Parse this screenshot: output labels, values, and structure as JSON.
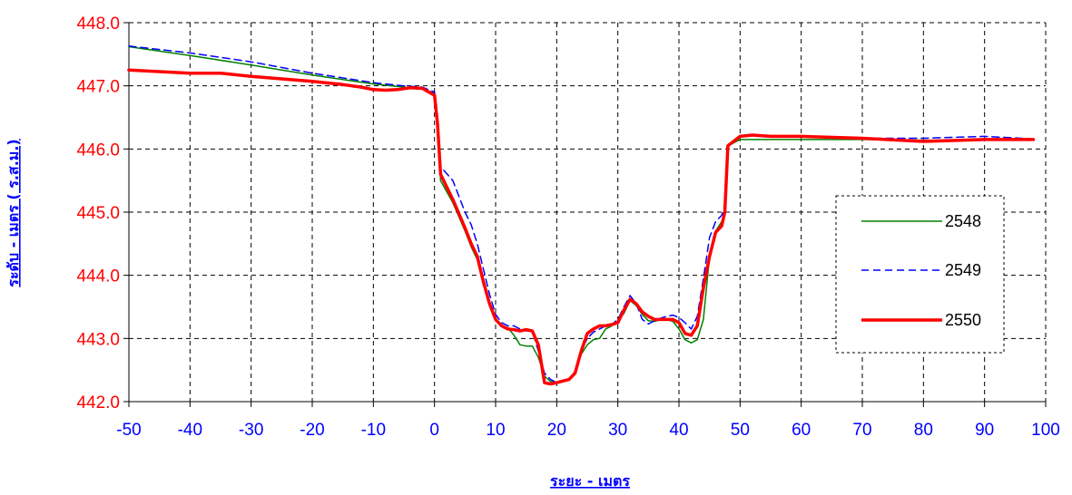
{
  "colors": {
    "y_tick": "#ff0000",
    "x_tick": "#0000ff",
    "axis_title": "#0000ff",
    "grid": "#000000"
  },
  "chart_data": {
    "type": "line",
    "title": "",
    "xlabel": "ระยะ - เมตร",
    "ylabel": "ระดับ - เมตร ( ร.ส.ม.)",
    "xlim": [
      -50,
      100
    ],
    "ylim": [
      442.0,
      448.0
    ],
    "x_ticks": [
      -50,
      -40,
      -30,
      -20,
      -10,
      0,
      10,
      20,
      30,
      40,
      50,
      60,
      70,
      80,
      90,
      100
    ],
    "y_ticks": [
      "442.0",
      "443.0",
      "444.0",
      "445.0",
      "446.0",
      "447.0",
      "448.0"
    ],
    "grid": true,
    "legend_position": "right",
    "series": [
      {
        "name": "2548",
        "color": "#008000",
        "dash": "solid",
        "width": 1.5,
        "points": [
          [
            -50,
            447.62
          ],
          [
            -40,
            447.48
          ],
          [
            -30,
            447.33
          ],
          [
            -20,
            447.17
          ],
          [
            -10,
            447.03
          ],
          [
            -5,
            446.98
          ],
          [
            -2,
            446.96
          ],
          [
            0,
            446.88
          ],
          [
            0.5,
            446.4
          ],
          [
            1,
            445.5
          ],
          [
            3,
            445.15
          ],
          [
            5,
            444.7
          ],
          [
            6,
            444.45
          ],
          [
            7,
            444.25
          ],
          [
            8,
            443.85
          ],
          [
            9,
            443.55
          ],
          [
            10,
            443.32
          ],
          [
            11,
            443.2
          ],
          [
            12,
            443.17
          ],
          [
            13,
            443.05
          ],
          [
            14,
            442.9
          ],
          [
            15,
            442.88
          ],
          [
            16,
            442.88
          ],
          [
            17,
            442.7
          ],
          [
            18,
            442.4
          ],
          [
            19,
            442.32
          ],
          [
            20,
            442.3
          ],
          [
            22,
            442.35
          ],
          [
            23,
            442.45
          ],
          [
            24,
            442.75
          ],
          [
            25,
            442.9
          ],
          [
            26,
            442.98
          ],
          [
            27,
            443.0
          ],
          [
            28,
            443.15
          ],
          [
            29,
            443.2
          ],
          [
            30,
            443.27
          ],
          [
            31,
            443.4
          ],
          [
            32,
            443.6
          ],
          [
            33,
            443.52
          ],
          [
            34,
            443.38
          ],
          [
            35,
            443.28
          ],
          [
            36,
            443.27
          ],
          [
            37,
            443.3
          ],
          [
            38,
            443.3
          ],
          [
            39,
            443.27
          ],
          [
            40,
            443.15
          ],
          [
            41,
            442.98
          ],
          [
            42,
            442.93
          ],
          [
            43,
            442.98
          ],
          [
            44,
            443.3
          ],
          [
            44.5,
            443.8
          ],
          [
            45,
            444.3
          ],
          [
            46,
            444.7
          ],
          [
            47,
            444.85
          ],
          [
            47.5,
            445.0
          ],
          [
            48,
            446.05
          ],
          [
            50,
            446.15
          ],
          [
            55,
            446.15
          ],
          [
            60,
            446.15
          ],
          [
            70,
            446.15
          ],
          [
            80,
            446.14
          ],
          [
            90,
            446.14
          ],
          [
            98,
            446.14
          ]
        ]
      },
      {
        "name": "2549",
        "color": "#0000ff",
        "dash": "dashed",
        "width": 1.5,
        "points": [
          [
            -50,
            447.63
          ],
          [
            -40,
            447.52
          ],
          [
            -30,
            447.38
          ],
          [
            -20,
            447.2
          ],
          [
            -10,
            447.05
          ],
          [
            -5,
            447.0
          ],
          [
            -2,
            446.98
          ],
          [
            0,
            446.9
          ],
          [
            0.5,
            446.4
          ],
          [
            1,
            445.72
          ],
          [
            3,
            445.5
          ],
          [
            5,
            445.0
          ],
          [
            6,
            444.8
          ],
          [
            7,
            444.5
          ],
          [
            8,
            444.1
          ],
          [
            9,
            443.7
          ],
          [
            10,
            443.38
          ],
          [
            11,
            443.25
          ],
          [
            12,
            443.2
          ],
          [
            13,
            443.2
          ],
          [
            14,
            443.15
          ],
          [
            15,
            443.12
          ],
          [
            16,
            443.12
          ],
          [
            17,
            442.8
          ],
          [
            18,
            442.45
          ],
          [
            19,
            442.35
          ],
          [
            20,
            442.3
          ],
          [
            22,
            442.35
          ],
          [
            23,
            442.48
          ],
          [
            24,
            442.8
          ],
          [
            25,
            443.0
          ],
          [
            26,
            443.1
          ],
          [
            27,
            443.15
          ],
          [
            28,
            443.2
          ],
          [
            29,
            443.22
          ],
          [
            30,
            443.3
          ],
          [
            31,
            443.5
          ],
          [
            32,
            443.68
          ],
          [
            33,
            443.55
          ],
          [
            34,
            443.3
          ],
          [
            35,
            443.23
          ],
          [
            36,
            443.28
          ],
          [
            37,
            443.32
          ],
          [
            38,
            443.35
          ],
          [
            39,
            443.37
          ],
          [
            40,
            443.33
          ],
          [
            41,
            443.25
          ],
          [
            42,
            443.15
          ],
          [
            43,
            443.35
          ],
          [
            44,
            443.95
          ],
          [
            45,
            444.6
          ],
          [
            46,
            444.85
          ],
          [
            47,
            444.95
          ],
          [
            47.5,
            445.1
          ],
          [
            48,
            446.05
          ],
          [
            50,
            446.2
          ],
          [
            52,
            446.22
          ],
          [
            55,
            446.2
          ],
          [
            60,
            446.2
          ],
          [
            70,
            446.17
          ],
          [
            80,
            446.17
          ],
          [
            90,
            446.2
          ],
          [
            98,
            446.16
          ]
        ]
      },
      {
        "name": "2550",
        "color": "#ff0000",
        "dash": "solid",
        "width": 3.5,
        "points": [
          [
            -50,
            447.25
          ],
          [
            -40,
            447.2
          ],
          [
            -35,
            447.2
          ],
          [
            -30,
            447.15
          ],
          [
            -20,
            447.07
          ],
          [
            -15,
            447.02
          ],
          [
            -12,
            446.98
          ],
          [
            -10,
            446.94
          ],
          [
            -8,
            446.93
          ],
          [
            -6,
            446.94
          ],
          [
            -4,
            446.97
          ],
          [
            -2,
            446.96
          ],
          [
            0,
            446.85
          ],
          [
            0.5,
            446.4
          ],
          [
            1,
            445.6
          ],
          [
            3,
            445.2
          ],
          [
            5,
            444.75
          ],
          [
            6,
            444.5
          ],
          [
            7,
            444.3
          ],
          [
            8,
            443.9
          ],
          [
            9,
            443.55
          ],
          [
            10,
            443.3
          ],
          [
            11,
            443.2
          ],
          [
            12,
            443.15
          ],
          [
            13,
            443.14
          ],
          [
            14,
            443.12
          ],
          [
            15,
            443.14
          ],
          [
            16,
            443.12
          ],
          [
            17,
            442.9
          ],
          [
            18,
            442.3
          ],
          [
            19,
            442.28
          ],
          [
            20,
            442.3
          ],
          [
            22,
            442.35
          ],
          [
            23,
            442.45
          ],
          [
            24,
            442.8
          ],
          [
            25,
            443.08
          ],
          [
            26,
            443.15
          ],
          [
            27,
            443.2
          ],
          [
            28,
            443.2
          ],
          [
            29,
            443.22
          ],
          [
            30,
            443.25
          ],
          [
            31,
            443.45
          ],
          [
            32,
            443.62
          ],
          [
            33,
            443.55
          ],
          [
            34,
            443.42
          ],
          [
            35,
            443.35
          ],
          [
            36,
            443.3
          ],
          [
            37,
            443.3
          ],
          [
            38,
            443.3
          ],
          [
            39,
            443.3
          ],
          [
            40,
            443.25
          ],
          [
            41,
            443.08
          ],
          [
            42,
            443.05
          ],
          [
            43,
            443.2
          ],
          [
            44,
            443.8
          ],
          [
            45,
            444.3
          ],
          [
            46,
            444.68
          ],
          [
            47,
            444.78
          ],
          [
            47.5,
            445.0
          ],
          [
            48,
            446.05
          ],
          [
            50,
            446.2
          ],
          [
            52,
            446.22
          ],
          [
            55,
            446.2
          ],
          [
            60,
            446.2
          ],
          [
            70,
            446.17
          ],
          [
            80,
            446.12
          ],
          [
            90,
            446.15
          ],
          [
            98,
            446.15
          ]
        ]
      }
    ]
  }
}
